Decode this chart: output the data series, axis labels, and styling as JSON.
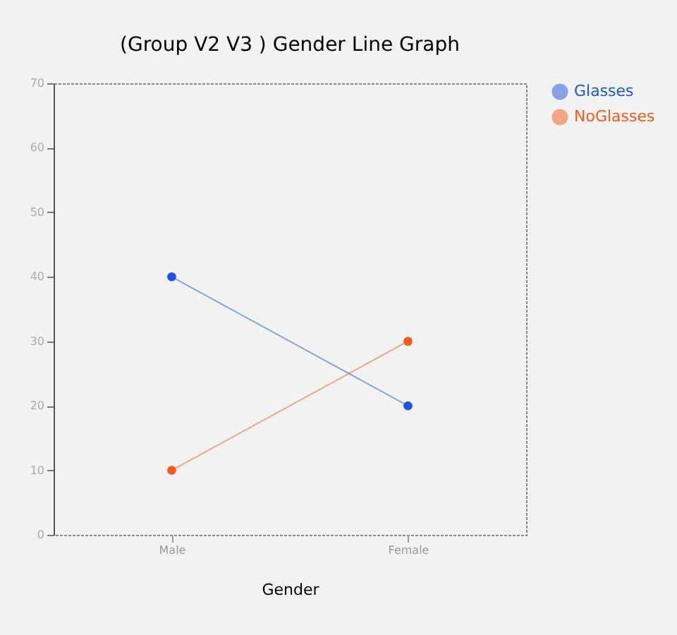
{
  "chart_data": {
    "type": "line",
    "title": "(Group V2 V3 ) Gender Line Graph",
    "xlabel": "Gender",
    "categories": [
      "Male",
      "Female"
    ],
    "series": [
      {
        "name": "Glasses",
        "color": "#1a56e0",
        "values": [
          40,
          20
        ]
      },
      {
        "name": "NoGlasses",
        "color": "#f25a1a",
        "values": [
          10,
          30
        ]
      }
    ],
    "ylim": [
      0,
      70
    ],
    "yticks": [
      0,
      10,
      20,
      30,
      40,
      50,
      60,
      70
    ],
    "grid": false,
    "legend": "top right",
    "marker": "circle",
    "line_style": "solid"
  }
}
